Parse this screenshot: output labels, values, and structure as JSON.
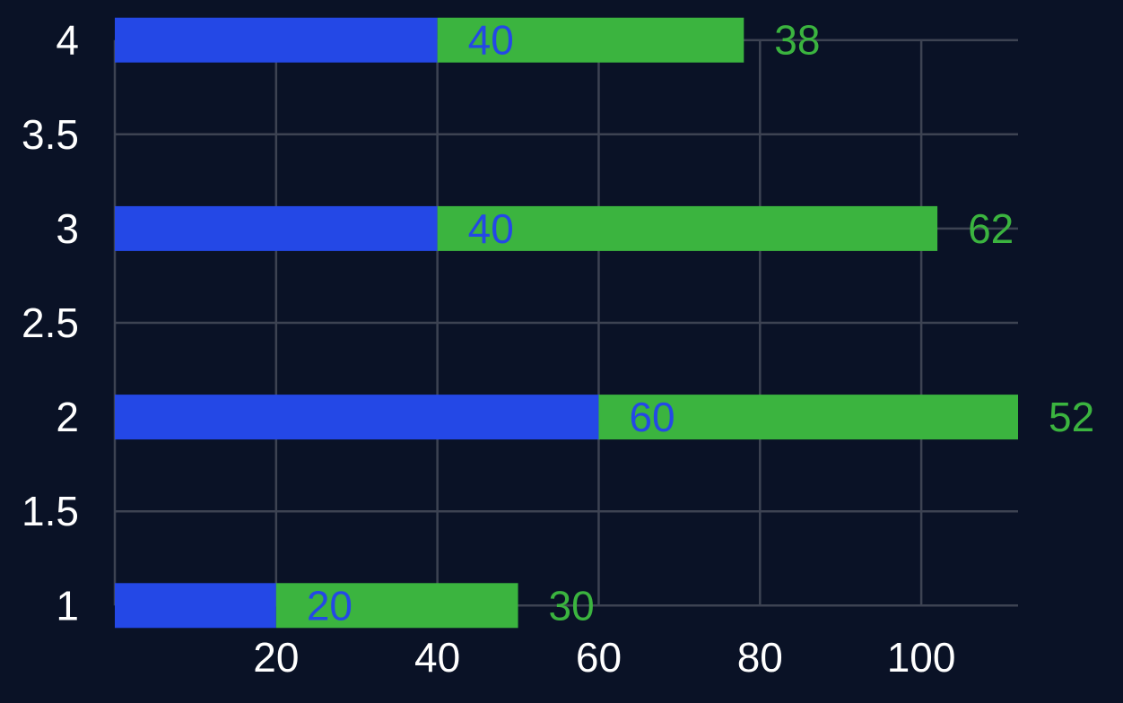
{
  "chart_data": {
    "type": "bar",
    "orientation": "horizontal",
    "stacked": true,
    "y_values": [
      1,
      2,
      3,
      4
    ],
    "series": [
      {
        "values": [
          20,
          60,
          40,
          40
        ],
        "color": "#2448e6"
      },
      {
        "values": [
          30,
          52,
          62,
          38
        ],
        "color": "#3bb43f"
      }
    ],
    "xlim": [
      0,
      112
    ],
    "ylim": [
      0.93,
      4.07
    ],
    "x_ticks": [
      20,
      40,
      60,
      80,
      100
    ],
    "x_tick_labels": [
      "20",
      "40",
      "60",
      "80",
      "100"
    ],
    "y_ticks": [
      1,
      1.5,
      2,
      2.5,
      3,
      3.5,
      4
    ],
    "y_tick_labels": [
      "1",
      "1.5",
      "2",
      "2.5",
      "3",
      "3.5",
      "4"
    ],
    "title": "",
    "xlabel": "",
    "ylabel": "",
    "grid": true,
    "legend": "none"
  }
}
